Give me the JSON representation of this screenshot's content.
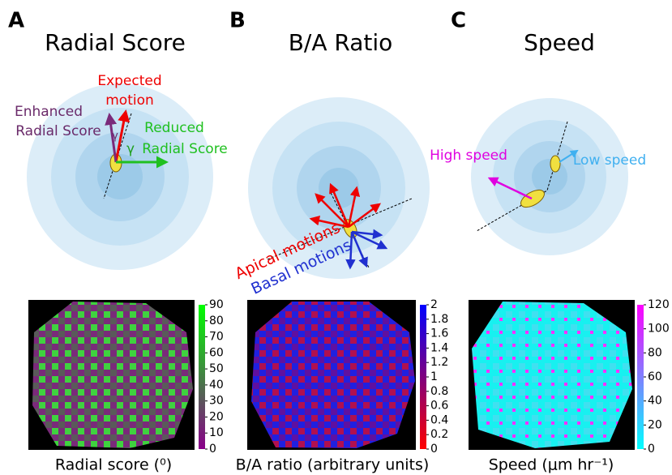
{
  "panels": [
    {
      "label": "A",
      "title": "Radial Score",
      "annotations": [
        "Expected",
        "motion",
        "Enhanced",
        "Radial Score",
        "Reduced",
        "Radial Score",
        "γ",
        "γ"
      ],
      "colorbar_ticks": [
        0,
        10,
        20,
        30,
        40,
        50,
        60,
        70,
        80,
        90
      ],
      "xlabel": "Radial score (⁰)"
    },
    {
      "label": "B",
      "title": "B/A Ratio",
      "annotations": [
        "Apical motions",
        "Basal motions"
      ],
      "colorbar_ticks": [
        0,
        0.2,
        0.4,
        0.6,
        0.8,
        1,
        1.2,
        1.4,
        1.6,
        1.8,
        2
      ],
      "xlabel": "B/A ratio (arbitrary units)"
    },
    {
      "label": "C",
      "title": "Speed",
      "annotations": [
        "High speed",
        "Low speed"
      ],
      "colorbar_ticks": [
        0,
        20,
        40,
        60,
        80,
        100,
        120
      ],
      "xlabel": "Speed (μm hr⁻¹)"
    }
  ]
}
